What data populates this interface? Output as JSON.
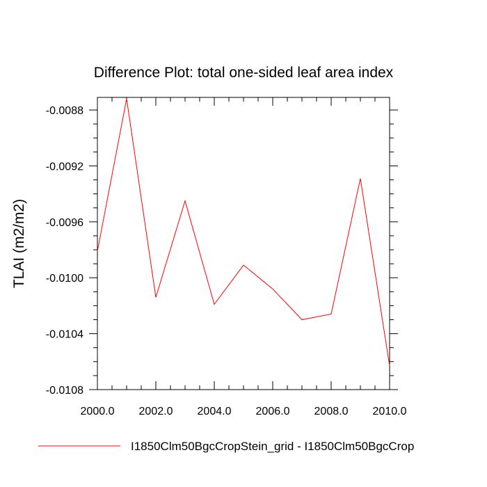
{
  "chart_data": {
    "type": "line",
    "title": "Difference Plot: total one-sided leaf area index",
    "ylabel": "TLAI  (m2/m2)",
    "xlabel": "",
    "xlim": [
      2000,
      2010
    ],
    "ylim": [
      -0.0108,
      -0.00871
    ],
    "x_ticks": [
      2000,
      2002,
      2004,
      2006,
      2008,
      2010
    ],
    "x_tick_labels": [
      "2000.0",
      "2002.0",
      "2004.0",
      "2006.0",
      "2008.0",
      "2010.0"
    ],
    "y_ticks": [
      -0.0108,
      -0.0104,
      -0.01,
      -0.0096,
      -0.0092,
      -0.0088
    ],
    "y_tick_labels": [
      "-0.0108",
      "-0.0104",
      "-0.0100",
      "-0.0096",
      "-0.0092",
      "-0.0088"
    ],
    "x": [
      2000,
      2001,
      2002,
      2003,
      2004,
      2005,
      2006,
      2007,
      2008,
      2009,
      2010
    ],
    "series": [
      {
        "name": "I1850Clm50BgcCropStein_grid - I1850Clm50BgcCrop",
        "color": "#ff0000",
        "values": [
          -0.00981,
          -0.00872,
          -0.01014,
          -0.00945,
          -0.01019,
          -0.00991,
          -0.01008,
          -0.0103,
          -0.01026,
          -0.00929,
          -0.01063
        ]
      }
    ],
    "grid": false,
    "legend_position": "bottom"
  }
}
